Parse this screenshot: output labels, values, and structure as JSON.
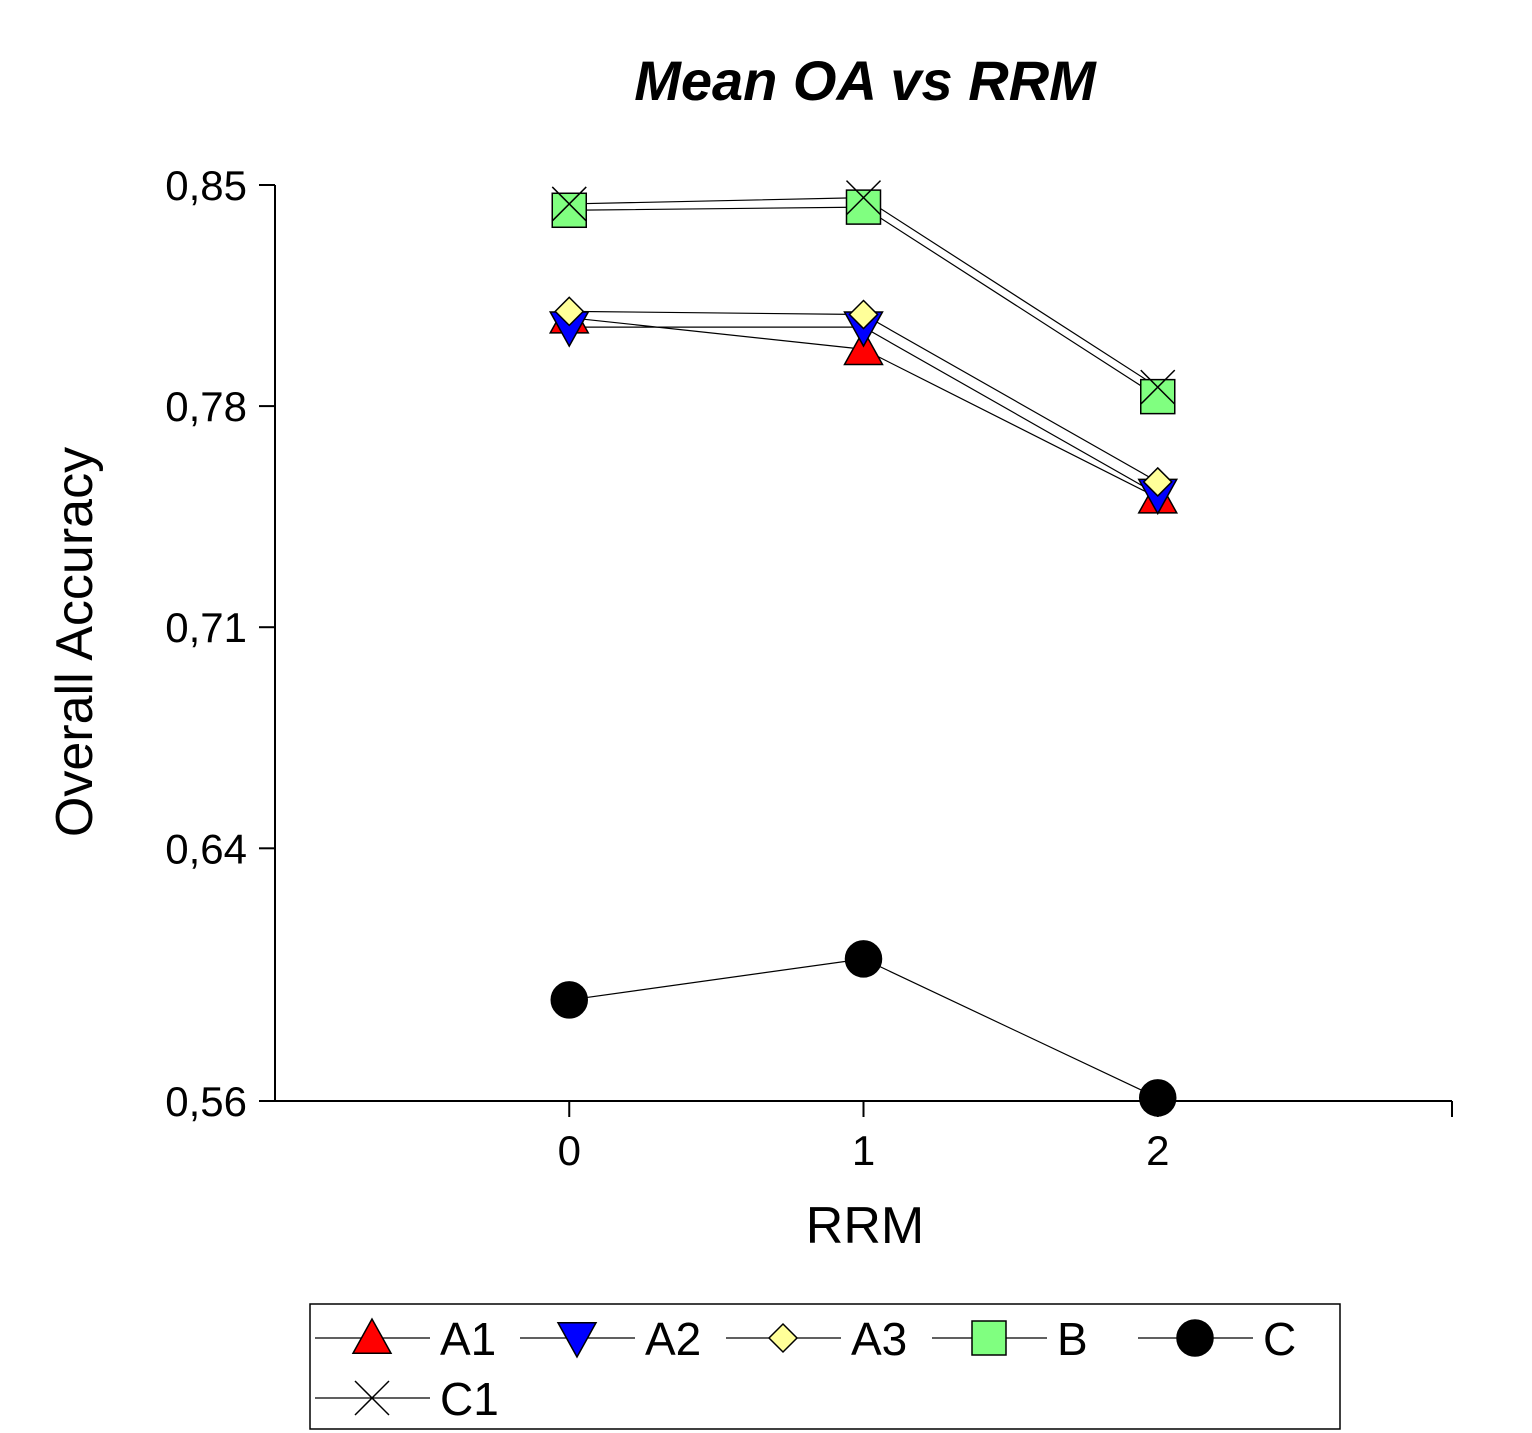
{
  "chart_data": {
    "type": "line",
    "title": "Mean OA vs RRM",
    "xlabel": "RRM",
    "ylabel": "Overall Accuracy",
    "x": [
      0,
      1,
      2
    ],
    "x_tick_labels": [
      "0",
      "1",
      "2"
    ],
    "xlim": [
      -1,
      3
    ],
    "ylim": [
      0.56,
      0.85
    ],
    "y_ticks": [
      0.56,
      0.64,
      0.71,
      0.78,
      0.85
    ],
    "y_tick_labels": [
      "0,56",
      "0,64",
      "0,71",
      "0,78",
      "0,85"
    ],
    "grid": false,
    "legend_position": "bottom",
    "series": [
      {
        "name": "A1",
        "marker": "triangle-up",
        "color": "#ff0000",
        "values": [
          0.808,
          0.798,
          0.751
        ]
      },
      {
        "name": "A2",
        "marker": "triangle-down",
        "color": "#0000ff",
        "values": [
          0.805,
          0.805,
          0.752
        ]
      },
      {
        "name": "A3",
        "marker": "diamond",
        "color": "#ffff99",
        "values": [
          0.81,
          0.809,
          0.756
        ]
      },
      {
        "name": "B",
        "marker": "square",
        "color": "#80ff80",
        "values": [
          0.842,
          0.843,
          0.783
        ]
      },
      {
        "name": "C",
        "marker": "circle",
        "color": "#000000",
        "values": [
          0.592,
          0.605,
          0.561
        ]
      },
      {
        "name": "C1",
        "marker": "x",
        "color": "#000000",
        "values": [
          0.844,
          0.846,
          0.786
        ]
      }
    ]
  }
}
